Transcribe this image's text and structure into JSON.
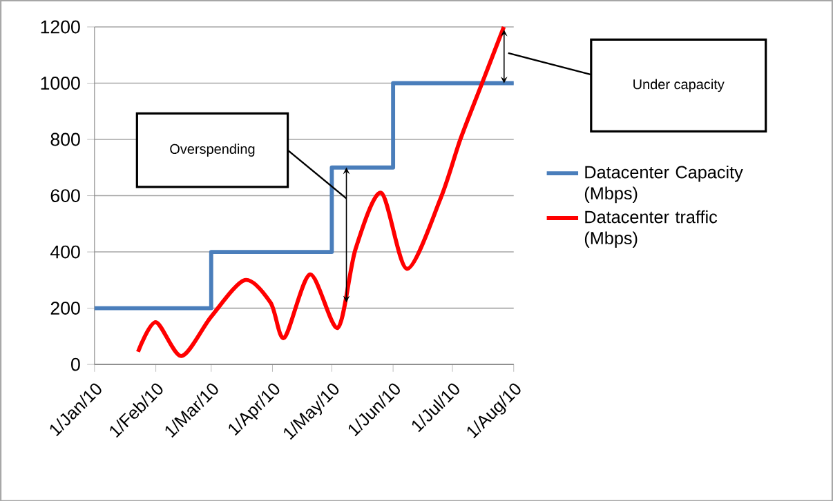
{
  "chart_data": {
    "type": "line",
    "xlim": [
      "2010-01-01",
      "2010-08-01"
    ],
    "xticks": [
      {
        "value": "2010-01-01",
        "label": "1/Jan/10"
      },
      {
        "value": "2010-02-01",
        "label": "1/Feb/10"
      },
      {
        "value": "2010-03-01",
        "label": "1/Mar/10"
      },
      {
        "value": "2010-04-01",
        "label": "1/Apr/10"
      },
      {
        "value": "2010-05-01",
        "label": "1/May/10"
      },
      {
        "value": "2010-06-01",
        "label": "1/Jun/10"
      },
      {
        "value": "2010-07-01",
        "label": "1/Jul/10"
      },
      {
        "value": "2010-08-01",
        "label": "1/Aug/10"
      }
    ],
    "ylim": [
      0,
      1200
    ],
    "yticks": [
      0,
      200,
      400,
      600,
      800,
      1000,
      1200
    ],
    "grid": "y",
    "legend": "right",
    "marker": "none",
    "line_style": "solid",
    "series": [
      {
        "name": "Datacenter Capacity (Mbps)",
        "type": "step",
        "color": "#4a7ebb",
        "x": [
          "2010-01-01",
          "2010-03-01",
          "2010-05-01",
          "2010-06-01",
          "2010-08-01"
        ],
        "values": [
          200,
          400,
          700,
          1000,
          1000
        ]
      },
      {
        "name": "Datacenter traffic (Mbps)",
        "type": "line",
        "color": "#ff0000",
        "x": [
          "2010-01-23",
          "2010-02-01",
          "2010-02-14",
          "2010-03-01",
          "2010-03-18",
          "2010-03-31",
          "2010-04-07",
          "2010-04-20",
          "2010-05-04",
          "2010-05-13",
          "2010-05-26",
          "2010-06-08",
          "2010-06-25",
          "2010-07-05",
          "2010-07-16",
          "2010-07-27"
        ],
        "values": [
          45,
          150,
          30,
          170,
          300,
          220,
          95,
          320,
          130,
          410,
          610,
          340,
          590,
          800,
          1000,
          1200
        ]
      }
    ],
    "annotations": [
      "Overspending",
      "Under capacity"
    ]
  }
}
